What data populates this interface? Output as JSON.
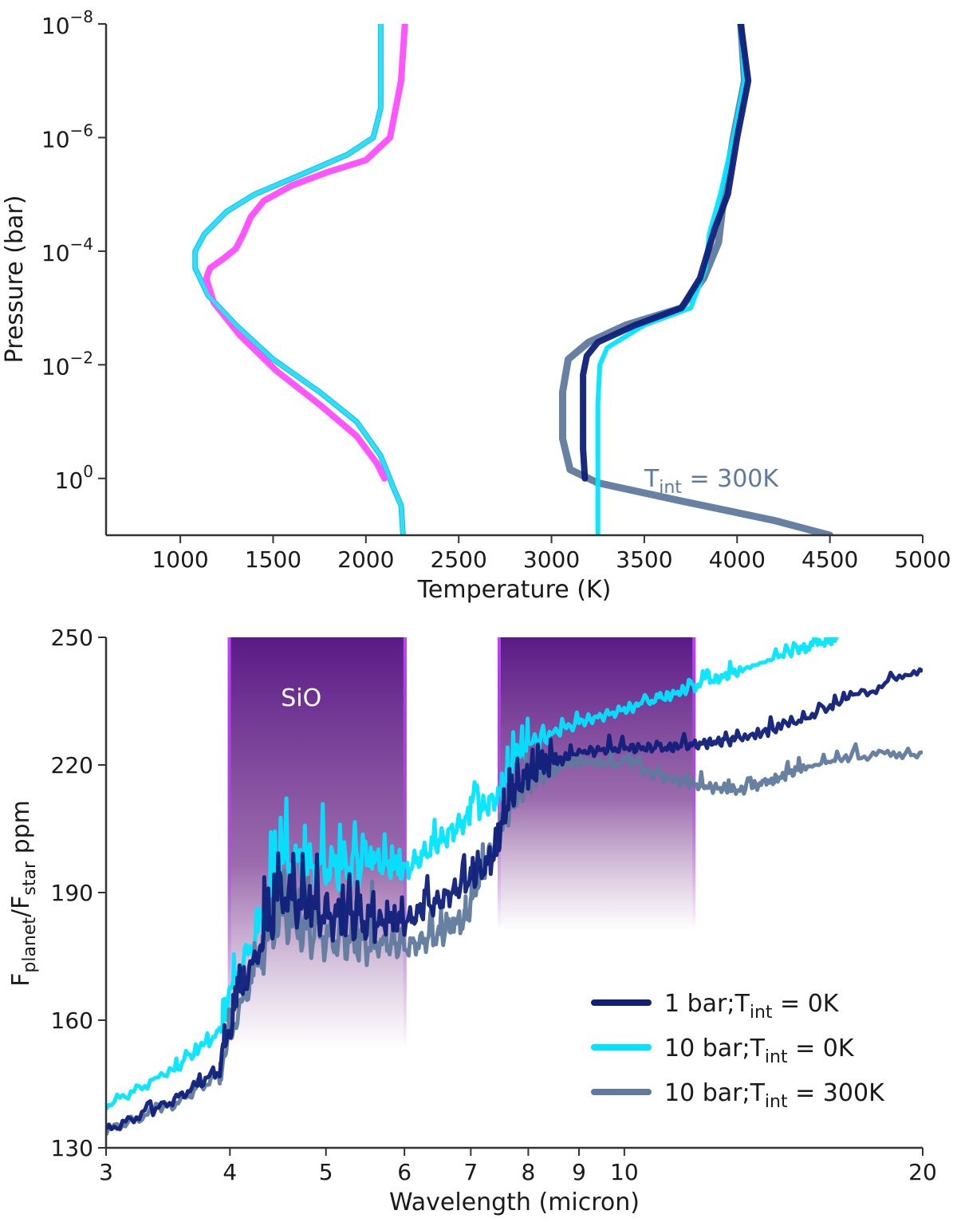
{
  "chart_data": [
    {
      "type": "line",
      "xlabel": "Temperature (K)",
      "ylabel": "Pressure (bar)",
      "xlim": [
        600,
        5000
      ],
      "ylim": [
        1e-08,
        10
      ],
      "y_scale": "log",
      "y_inverted": true,
      "x_ticks": [
        "1000",
        "1500",
        "2000",
        "2500",
        "3000",
        "3500",
        "4000",
        "4500",
        "5000"
      ],
      "y_ticks": [
        {
          "base": "10",
          "exp": "−8",
          "value": 1e-08
        },
        {
          "base": "10",
          "exp": "−6",
          "value": 1e-06
        },
        {
          "base": "10",
          "exp": "−4",
          "value": 0.0001
        },
        {
          "base": "10",
          "exp": "−2",
          "value": 0.01
        },
        {
          "base": "10",
          "exp": "0",
          "value": 1
        }
      ],
      "annotation": {
        "main": "T",
        "sub": "int",
        "rest": " = 300K",
        "color": "#5f7a9e",
        "x": 3500,
        "y": 1
      },
      "series": [
        {
          "color": "#00b8ff",
          "width": 7,
          "points": [
            [
              2080,
              1e-08
            ],
            [
              2080,
              3e-07
            ],
            [
              2040,
              1e-06
            ],
            [
              1900,
              2e-06
            ],
            [
              1650,
              4.5e-06
            ],
            [
              1400,
              1e-05
            ],
            [
              1250,
              2e-05
            ],
            [
              1130,
              5e-05
            ],
            [
              1080,
              0.0001
            ],
            [
              1080,
              0.0002
            ],
            [
              1150,
              0.0006
            ],
            [
              1300,
              0.002
            ],
            [
              1500,
              0.008
            ],
            [
              1750,
              0.03
            ],
            [
              1950,
              0.1
            ],
            [
              2080,
              0.4
            ],
            [
              2150,
              1.5
            ],
            [
              2190,
              3
            ],
            [
              2200,
              10
            ]
          ]
        },
        {
          "color": "#ff4cff",
          "width": 8,
          "points": [
            [
              2210,
              1e-08
            ],
            [
              2190,
              1e-07
            ],
            [
              2130,
              1e-06
            ],
            [
              2000,
              2.5e-06
            ],
            [
              1800,
              4e-06
            ],
            [
              1600,
              7e-06
            ],
            [
              1450,
              1.3e-05
            ],
            [
              1380,
              2.5e-05
            ],
            [
              1340,
              5e-05
            ],
            [
              1300,
              9e-05
            ],
            [
              1240,
              0.00013
            ],
            [
              1160,
              0.0002
            ],
            [
              1140,
              0.0003
            ],
            [
              1180,
              0.0008
            ],
            [
              1320,
              0.003
            ],
            [
              1520,
              0.013
            ],
            [
              1750,
              0.05
            ],
            [
              1950,
              0.18
            ],
            [
              2060,
              0.55
            ],
            [
              2100,
              1
            ]
          ]
        },
        {
          "color": "#34e0f2",
          "width": 5,
          "points": [
            [
              2080,
              1e-08
            ],
            [
              2080,
              3e-07
            ],
            [
              2040,
              1e-06
            ],
            [
              1900,
              2e-06
            ],
            [
              1650,
              4.5e-06
            ],
            [
              1400,
              1e-05
            ],
            [
              1250,
              2e-05
            ],
            [
              1130,
              5e-05
            ],
            [
              1080,
              0.0001
            ],
            [
              1080,
              0.0002
            ],
            [
              1150,
              0.0006
            ],
            [
              1300,
              0.002
            ],
            [
              1500,
              0.008
            ],
            [
              1750,
              0.03
            ],
            [
              1950,
              0.1
            ],
            [
              2080,
              0.4
            ],
            [
              2150,
              1.5
            ],
            [
              2190,
              3
            ],
            [
              2200,
              10
            ]
          ]
        },
        {
          "color": "#5f7a9e",
          "width": 9,
          "points": [
            [
              4020,
              1e-08
            ],
            [
              4040,
              1e-07
            ],
            [
              3980,
              1e-06
            ],
            [
              3930,
              1e-05
            ],
            [
              3900,
              7e-05
            ],
            [
              3820,
              0.0003
            ],
            [
              3700,
              0.001
            ],
            [
              3400,
              0.002
            ],
            [
              3200,
              0.004
            ],
            [
              3090,
              0.008
            ],
            [
              3060,
              0.03
            ],
            [
              3060,
              0.2
            ],
            [
              3100,
              0.7
            ],
            [
              3250,
              1.2
            ],
            [
              3700,
              2.5
            ],
            [
              4200,
              5.5
            ],
            [
              4500,
              10
            ]
          ]
        },
        {
          "color": "#00e5ff",
          "width": 6,
          "points": [
            [
              4020,
              1e-08
            ],
            [
              4040,
              1e-07
            ],
            [
              3980,
              1e-06
            ],
            [
              3910,
              1e-05
            ],
            [
              3850,
              5e-05
            ],
            [
              3830,
              0.0002
            ],
            [
              3750,
              0.001
            ],
            [
              3500,
              0.002
            ],
            [
              3300,
              0.005
            ],
            [
              3260,
              0.01
            ],
            [
              3250,
              0.05
            ],
            [
              3250,
              10
            ]
          ]
        },
        {
          "color": "#0f1f7a",
          "width": 8,
          "points": [
            [
              4020,
              1e-08
            ],
            [
              4060,
              1e-07
            ],
            [
              4000,
              1e-06
            ],
            [
              3950,
              1e-05
            ],
            [
              3880,
              4e-05
            ],
            [
              3800,
              0.0003
            ],
            [
              3700,
              0.001
            ],
            [
              3450,
              0.002
            ],
            [
              3250,
              0.004
            ],
            [
              3190,
              0.007
            ],
            [
              3170,
              0.015
            ],
            [
              3170,
              0.3
            ],
            [
              3180,
              1
            ]
          ]
        }
      ]
    },
    {
      "type": "line",
      "xlabel": "Wavelength (micron)",
      "ylabel": {
        "main": "F",
        "sub1": "planet",
        "mid": "/F",
        "sub2": "star",
        "rest": " ppm"
      },
      "xlim": [
        3,
        20
      ],
      "ylim": [
        130,
        250
      ],
      "x_scale": "log",
      "x_ticks": [
        3,
        4,
        5,
        6,
        7,
        8,
        9,
        10,
        20
      ],
      "y_ticks": [
        130,
        160,
        190,
        220,
        250
      ],
      "bands": [
        {
          "x0": 3.98,
          "x1": 6.03,
          "y_bottom": 153,
          "label": "SiO"
        },
        {
          "x0": 7.45,
          "x1": 11.8,
          "y_bottom": 181,
          "label": ""
        }
      ],
      "legend": {
        "position": "lower-right",
        "entries": [
          {
            "pre": "1 bar;T",
            "sub": "int",
            "post": " = 0K",
            "color": "#0f1f7a"
          },
          {
            "pre": "10 bar;T",
            "sub": "int",
            "post": " = 0K",
            "color": "#00e5ff"
          },
          {
            "pre": "10 bar;T",
            "sub": "int",
            "post": " = 300K",
            "color": "#5f7a9e"
          }
        ]
      },
      "series": [
        {
          "color": "#00e5ff",
          "points": [
            [
              3,
              140
            ],
            [
              3.5,
              148
            ],
            [
              3.9,
              157
            ],
            [
              4.05,
              170
            ],
            [
              4.3,
              182
            ],
            [
              4.5,
              198
            ],
            [
              4.8,
              196
            ],
            [
              5.2,
              196
            ],
            [
              5.6,
              197
            ],
            [
              6,
              195
            ],
            [
              6.5,
              202
            ],
            [
              7.0,
              208
            ],
            [
              7.5,
              213
            ],
            [
              7.7,
              220
            ],
            [
              8,
              225
            ],
            [
              9,
              230
            ],
            [
              10,
              233
            ],
            [
              11,
              236
            ],
            [
              12,
              239
            ],
            [
              13,
              242
            ],
            [
              15,
              247
            ],
            [
              16.5,
              250
            ]
          ]
        },
        {
          "color": "#5f7a9e",
          "points": [
            [
              3,
              134
            ],
            [
              3.5,
              140
            ],
            [
              3.9,
              147
            ],
            [
              4.05,
              160
            ],
            [
              4.3,
              175
            ],
            [
              4.5,
              185
            ],
            [
              4.8,
              180
            ],
            [
              5.2,
              179
            ],
            [
              5.6,
              178
            ],
            [
              6,
              177
            ],
            [
              6.5,
              180
            ],
            [
              6.9,
              183
            ],
            [
              7.1,
              192
            ],
            [
              7.5,
              205
            ],
            [
              7.8,
              213
            ],
            [
              8.2,
              218
            ],
            [
              9,
              221
            ],
            [
              10,
              220
            ],
            [
              11,
              217
            ],
            [
              12,
              215
            ],
            [
              13,
              214
            ],
            [
              14,
              216
            ],
            [
              15,
              219
            ],
            [
              17,
              222
            ],
            [
              20,
              223
            ]
          ]
        },
        {
          "color": "#0f1f7a",
          "points": [
            [
              3,
              134
            ],
            [
              3.5,
              141
            ],
            [
              3.9,
              148
            ],
            [
              4.05,
              163
            ],
            [
              4.3,
              178
            ],
            [
              4.5,
              190
            ],
            [
              4.8,
              186
            ],
            [
              5.2,
              184
            ],
            [
              5.6,
              183
            ],
            [
              6,
              183
            ],
            [
              6.5,
              188
            ],
            [
              7.0,
              193
            ],
            [
              7.4,
              198
            ],
            [
              7.6,
              210
            ],
            [
              7.8,
              215
            ],
            [
              8.2,
              219
            ],
            [
              9,
              223
            ],
            [
              10,
              224
            ],
            [
              11,
              224
            ],
            [
              12,
              225
            ],
            [
              13,
              226
            ],
            [
              15,
              230
            ],
            [
              17,
              236
            ],
            [
              20,
              242
            ]
          ]
        }
      ]
    }
  ]
}
